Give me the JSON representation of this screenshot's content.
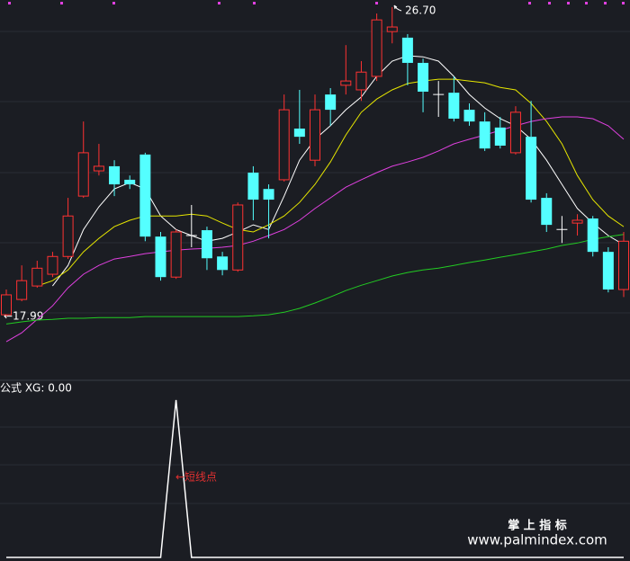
{
  "chart_data": [
    {
      "type": "candlestick",
      "ylim": [
        16.22,
        26.9
      ],
      "up_color": "#ff3232",
      "down_color": "#54ffff",
      "flat_color": "#ffffff",
      "open": [
        18.04,
        18.47,
        18.85,
        19.18,
        19.68,
        21.38,
        22.09,
        22.22,
        21.84,
        22.55,
        20.24,
        19.1,
        20.27,
        20.42,
        19.68,
        19.3,
        22.04,
        21.58,
        21.84,
        23.28,
        22.39,
        24.24,
        24.5,
        24.37,
        24.75,
        26.01,
        25.84,
        25.13,
        24.24,
        24.29,
        23.81,
        23.48,
        23.31,
        22.6,
        23.05,
        21.33,
        20.44,
        20.62,
        20.75,
        19.81,
        18.75
      ],
      "high": [
        18.75,
        19.43,
        19.56,
        19.81,
        21.33,
        23.48,
        22.85,
        22.39,
        21.96,
        22.6,
        20.37,
        20.44,
        21.13,
        20.52,
        19.81,
        21.2,
        22.22,
        21.71,
        24.24,
        24.37,
        24.24,
        24.42,
        25.63,
        25.18,
        26.52,
        26.7,
        25.94,
        25.25,
        24.62,
        24.75,
        23.99,
        23.74,
        23.61,
        23.91,
        24.06,
        21.46,
        20.82,
        20.87,
        20.82,
        19.94,
        20.37
      ],
      "low": [
        17.99,
        18.42,
        18.8,
        19.1,
        19.61,
        21.33,
        21.96,
        21.38,
        21.58,
        20.11,
        19.0,
        19.05,
        19.94,
        19.3,
        19.15,
        19.25,
        20.7,
        20.19,
        21.79,
        22.85,
        22.22,
        23.36,
        24.24,
        24.06,
        24.62,
        25.68,
        24.5,
        23.74,
        23.61,
        23.48,
        23.36,
        22.65,
        22.72,
        22.55,
        21.2,
        20.37,
        20.06,
        20.27,
        19.68,
        18.67,
        18.54
      ],
      "close": [
        18.6,
        19.0,
        19.35,
        19.68,
        20.82,
        22.6,
        22.22,
        21.71,
        21.71,
        20.24,
        19.1,
        20.37,
        20.27,
        19.63,
        19.3,
        21.13,
        21.28,
        21.28,
        23.81,
        23.05,
        23.81,
        23.81,
        24.62,
        24.87,
        26.34,
        26.14,
        25.13,
        24.32,
        24.24,
        23.56,
        23.48,
        22.72,
        22.8,
        23.74,
        21.28,
        20.57,
        20.44,
        20.7,
        19.81,
        18.75,
        20.11
      ],
      "series": [
        {
          "color": "#ffffff",
          "values": [
            null,
            null,
            null,
            18.85,
            19.43,
            20.44,
            21.08,
            21.58,
            21.76,
            21.58,
            20.82,
            20.44,
            20.27,
            20.11,
            20.19,
            20.37,
            20.57,
            20.44,
            21.38,
            22.39,
            22.98,
            23.36,
            23.81,
            24.17,
            24.75,
            25.18,
            25.33,
            25.3,
            25.18,
            24.75,
            24.24,
            23.86,
            23.56,
            23.36,
            22.98,
            22.39,
            21.71,
            21.03,
            20.62,
            20.27,
            20.01
          ]
        },
        {
          "color": "#e6e600",
          "values": [
            null,
            null,
            18.85,
            19.0,
            19.3,
            19.81,
            20.19,
            20.52,
            20.7,
            20.82,
            20.82,
            20.82,
            20.87,
            20.82,
            20.62,
            20.44,
            20.37,
            20.57,
            20.82,
            21.2,
            21.71,
            22.34,
            23.1,
            23.74,
            24.11,
            24.37,
            24.55,
            24.62,
            24.67,
            24.67,
            24.62,
            24.57,
            24.44,
            24.37,
            23.99,
            23.48,
            22.85,
            21.96,
            21.28,
            20.82,
            20.52
          ]
        },
        {
          "color": "#e040e0",
          "values": [
            17.28,
            17.53,
            17.91,
            18.29,
            18.8,
            19.18,
            19.43,
            19.61,
            19.68,
            19.76,
            19.81,
            19.86,
            19.89,
            19.91,
            19.94,
            19.99,
            20.11,
            20.27,
            20.44,
            20.7,
            21.03,
            21.33,
            21.63,
            21.84,
            22.04,
            22.22,
            22.34,
            22.47,
            22.65,
            22.85,
            22.98,
            23.1,
            23.23,
            23.36,
            23.48,
            23.56,
            23.61,
            23.61,
            23.56,
            23.36,
            22.98
          ]
        },
        {
          "color": "#22cc22",
          "values": [
            17.78,
            17.84,
            17.89,
            17.91,
            17.94,
            17.94,
            17.96,
            17.96,
            17.96,
            17.99,
            17.99,
            17.99,
            17.99,
            17.99,
            17.99,
            17.99,
            18.01,
            18.04,
            18.11,
            18.22,
            18.37,
            18.54,
            18.72,
            18.87,
            19.0,
            19.13,
            19.23,
            19.3,
            19.35,
            19.43,
            19.51,
            19.58,
            19.66,
            19.73,
            19.81,
            19.89,
            19.99,
            20.06,
            20.16,
            20.24,
            20.3
          ]
        }
      ],
      "high_label": "26.70",
      "low_label": "←17.99"
    },
    {
      "type": "line",
      "title": "公式 XG: 0.00",
      "annotation": "←短线点",
      "color": "#ffffff",
      "ylim": [
        0,
        1
      ],
      "values": [
        0,
        0,
        0,
        0,
        0,
        0,
        0,
        0,
        0,
        0,
        0,
        1,
        0,
        0,
        0,
        0,
        0,
        0,
        0,
        0,
        0,
        0,
        0,
        0,
        0,
        0,
        0,
        0,
        0,
        0,
        0,
        0,
        0,
        0,
        0,
        0,
        0,
        0,
        0,
        0,
        0
      ]
    }
  ],
  "watermark": {
    "brand": "掌 上 指 标",
    "url": "www.palmindex.com"
  }
}
